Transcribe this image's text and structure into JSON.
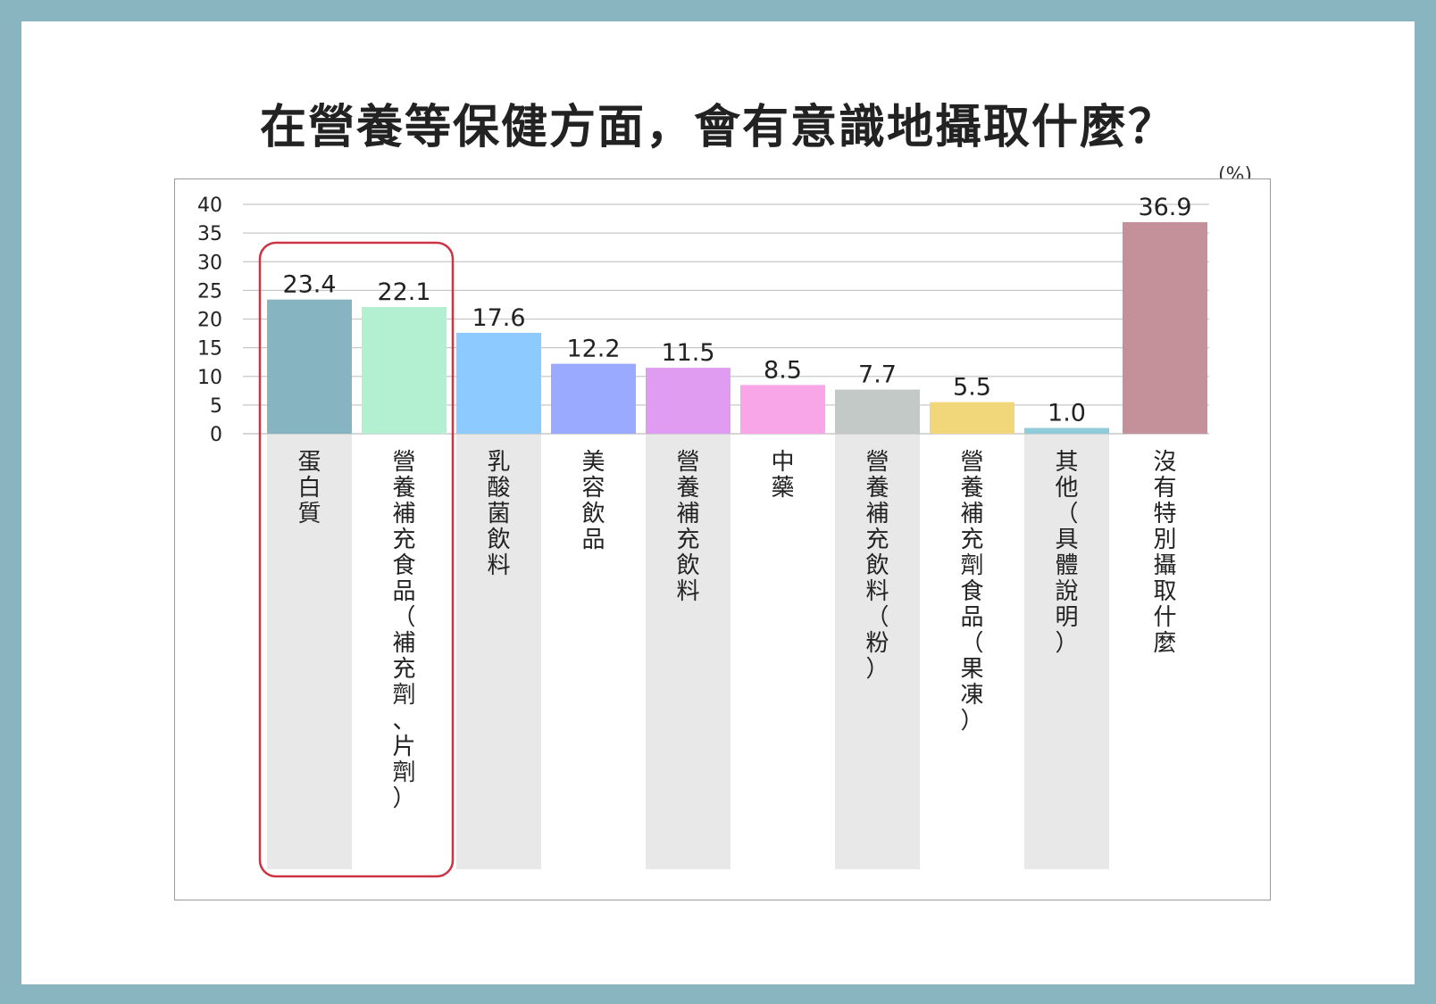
{
  "title": "在營養等保健方面，會有意識地攝取什麼？",
  "unit": "(%)",
  "colors": {
    "grid": "#c8c8c8",
    "stripe": "#e8e8e8",
    "highlight_box": "#cc3344",
    "frame": "#9a9a9a",
    "label": "#222222"
  },
  "chart_data": {
    "type": "bar",
    "title": "在營養等保健方面，會有意識地攝取什麼？",
    "ylabel": "(%)",
    "ylim": [
      0,
      40
    ],
    "yticks": [
      0,
      5,
      10,
      15,
      20,
      25,
      30,
      35,
      40
    ],
    "grid": true,
    "categories": [
      "蛋白質",
      "營養補充食品（補充劑、片劑）",
      "乳酸菌飲料",
      "美容飲品",
      "營養補充飲料",
      "中藥",
      "營養補充飲料（粉）",
      "營養補充劑食品（果凍）",
      "其他（具體說明）",
      "沒有特別攝取什麼"
    ],
    "values": [
      23.4,
      22.1,
      17.6,
      12.2,
      11.5,
      8.5,
      7.7,
      5.5,
      1.0,
      36.9
    ],
    "value_labels": [
      "23.4",
      "22.1",
      "17.6",
      "12.2",
      "11.5",
      "8.5",
      "7.7",
      "5.5",
      "1.0",
      "36.9"
    ],
    "bar_colors": [
      "#86b4c0",
      "#b3f0d1",
      "#8ccaff",
      "#9aaaff",
      "#e09cf0",
      "#f8a6e8",
      "#c3c9c6",
      "#f2d77a",
      "#8fcbd8",
      "#c4909a"
    ],
    "highlighted": [
      "蛋白質",
      "營養補充食品（補充劑、片劑）"
    ]
  }
}
